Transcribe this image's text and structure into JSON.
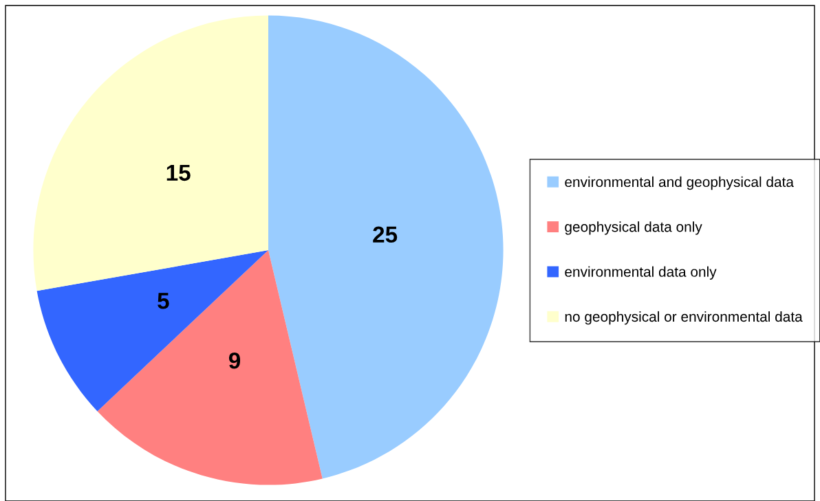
{
  "chart_data": {
    "type": "pie",
    "categories": [
      "environmental and geophysical data",
      "geophysical data only",
      "environmental data only",
      "no geophysical or environmental data"
    ],
    "values": [
      25,
      9,
      5,
      15
    ],
    "colors": [
      "#99ccff",
      "#ff8080",
      "#3366ff",
      "#ffffcc"
    ],
    "data_labels": true,
    "legend": "right"
  }
}
